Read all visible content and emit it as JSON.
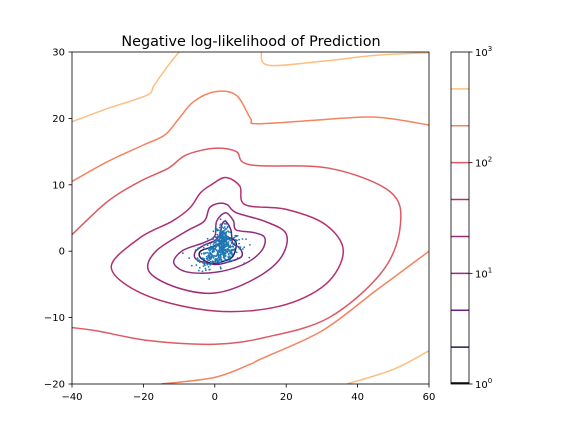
{
  "chart_data": {
    "type": "contour",
    "title": "Negative log-likelihood of Prediction",
    "xlabel": "",
    "ylabel": "",
    "xlim": [
      -40,
      60
    ],
    "ylim": [
      -20,
      30
    ],
    "xticks": [
      -40,
      -20,
      0,
      20,
      40,
      60
    ],
    "yticks": [
      -20,
      -10,
      0,
      10,
      20,
      30
    ],
    "colormap": "magma",
    "norm": "log",
    "levels": [
      1.0,
      2.154,
      4.642,
      10.0,
      21.54,
      46.42,
      100.0,
      215.4,
      464.2,
      1000.0
    ],
    "colorbar": {
      "range": [
        1,
        1000
      ],
      "scale": "log",
      "tick_labels": [
        {
          "value": 1,
          "mantissa": "10",
          "exp": "0"
        },
        {
          "value": 10,
          "mantissa": "10",
          "exp": "1"
        },
        {
          "value": 100,
          "mantissa": "10",
          "exp": "2"
        },
        {
          "value": 1000,
          "mantissa": "10",
          "exp": "3"
        }
      ]
    },
    "contours": [
      {
        "level": 2.154,
        "color": "#2a1a4f",
        "points": [
          [
            -1,
            -1.8
          ],
          [
            -4,
            -1
          ],
          [
            -4,
            0
          ],
          [
            -1,
            0.6
          ],
          [
            2,
            1.3
          ],
          [
            4,
            2
          ],
          [
            6,
            1.2
          ],
          [
            5,
            -0.8
          ],
          [
            2,
            -1.6
          ]
        ]
      },
      {
        "level": 4.642,
        "color": "#6f1f81",
        "points": [
          [
            3,
            4.5
          ],
          [
            4.5,
            3.2
          ],
          [
            5,
            1.2
          ],
          [
            7,
            0.5
          ],
          [
            7.5,
            -0.8
          ],
          [
            4,
            -1.6
          ],
          [
            0,
            -2
          ],
          [
            -5,
            -1.3
          ],
          [
            -5.5,
            -0.1
          ],
          [
            -3,
            0.9
          ],
          [
            0,
            1.6
          ],
          [
            1.5,
            2.6
          ],
          [
            2,
            4
          ]
        ]
      },
      {
        "level": 10.0,
        "color": "#8f2f7e",
        "points": [
          [
            3,
            5.8
          ],
          [
            5.2,
            4.6
          ],
          [
            6,
            3.2
          ],
          [
            11,
            2.8
          ],
          [
            14,
            2
          ],
          [
            13,
            0
          ],
          [
            8,
            -2
          ],
          [
            0,
            -3.2
          ],
          [
            -8,
            -3.1
          ],
          [
            -11.5,
            -1.7
          ],
          [
            -9,
            0.1
          ],
          [
            -3,
            1.3
          ],
          [
            0,
            2.3
          ],
          [
            0.5,
            4.5
          ]
        ]
      },
      {
        "level": 21.54,
        "color": "#a02c79",
        "points": [
          [
            1,
            7.2
          ],
          [
            3.5,
            7
          ],
          [
            6,
            5.8
          ],
          [
            14,
            4.5
          ],
          [
            20,
            2.6
          ],
          [
            18.5,
            -1
          ],
          [
            11,
            -4.2
          ],
          [
            0,
            -6.3
          ],
          [
            -11,
            -5.4
          ],
          [
            -18.5,
            -3
          ],
          [
            -16.5,
            0
          ],
          [
            -8,
            3
          ],
          [
            -3,
            4.5
          ],
          [
            -1.5,
            6.5
          ]
        ]
      },
      {
        "level": 46.42,
        "color": "#b5306f",
        "points": [
          [
            -1,
            10
          ],
          [
            3,
            11.1
          ],
          [
            7,
            9.8
          ],
          [
            8.5,
            7
          ],
          [
            20,
            6.3
          ],
          [
            31,
            4
          ],
          [
            36,
            0
          ],
          [
            31,
            -5
          ],
          [
            18,
            -8.3
          ],
          [
            0,
            -9
          ],
          [
            -19,
            -6.7
          ],
          [
            -29,
            -2.5
          ],
          [
            -21,
            2
          ],
          [
            -12,
            4.5
          ],
          [
            -7,
            6.5
          ],
          [
            -4,
            8.8
          ]
        ]
      },
      {
        "level": 100.0,
        "color": "#dd5b63",
        "points": [
          [
            -40,
            2.5
          ],
          [
            -30,
            7.5
          ],
          [
            -21,
            10.5
          ],
          [
            -13,
            12.5
          ],
          [
            -8,
            14.5
          ],
          [
            0,
            15.5
          ],
          [
            6,
            15
          ],
          [
            10,
            13
          ],
          [
            32,
            12.5
          ],
          [
            49,
            9
          ],
          [
            52,
            4
          ],
          [
            47,
            -3
          ],
          [
            32,
            -10
          ],
          [
            14,
            -13
          ],
          [
            0,
            -14
          ],
          [
            -18,
            -13.5
          ],
          [
            -33,
            -12
          ],
          [
            -40,
            -11.5
          ]
        ]
      },
      {
        "level": 215.4,
        "color": "#f3845f",
        "points": [
          [
            -40,
            10.5
          ],
          [
            -30,
            13.5
          ],
          [
            -20,
            16
          ],
          [
            -14,
            17.5
          ],
          [
            -10,
            20
          ],
          [
            -6,
            22.5
          ],
          [
            0,
            24
          ],
          [
            6,
            23.5
          ],
          [
            10,
            20
          ],
          [
            12,
            19.2
          ],
          [
            30,
            19.8
          ],
          [
            45,
            20.2
          ],
          [
            60,
            19
          ]
        ]
      },
      {
        "level": 215.4,
        "color": "#f3845f",
        "points": [
          [
            -15,
            -20
          ],
          [
            0,
            -19
          ],
          [
            10,
            -17
          ],
          [
            13,
            -16.2
          ],
          [
            30,
            -12
          ],
          [
            45,
            -6
          ],
          [
            60,
            0
          ]
        ]
      },
      {
        "level": 464.2,
        "color": "#fcbf80",
        "points": [
          [
            -40,
            19.5
          ],
          [
            -30,
            21.5
          ],
          [
            -19,
            23.5
          ],
          [
            -17,
            25
          ],
          [
            -13,
            28
          ],
          [
            -10,
            30
          ]
        ]
      },
      {
        "level": 464.2,
        "color": "#fcbf80",
        "points": [
          [
            13,
            30
          ],
          [
            15,
            28
          ],
          [
            30,
            28.6
          ],
          [
            45,
            29.5
          ],
          [
            60,
            29.9
          ]
        ]
      },
      {
        "level": 464.2,
        "color": "#fcbf80",
        "points": [
          [
            37,
            -20
          ],
          [
            50,
            -17.8
          ],
          [
            60,
            -15
          ]
        ]
      }
    ],
    "scatter": {
      "color": "#1f77b4",
      "count": 520,
      "center": [
        1.5,
        0
      ],
      "spread": [
        3.0,
        1.1
      ],
      "dense_center": [
        2.2,
        1.8
      ]
    }
  }
}
